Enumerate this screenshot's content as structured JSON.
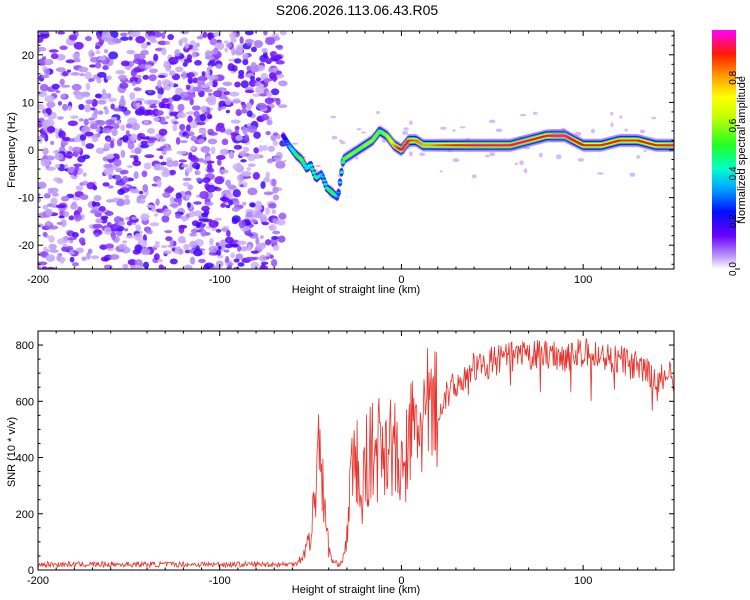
{
  "title": "S206.2026.113.06.43.R05",
  "colors": {
    "trace": "#e8312a",
    "axis": "#000000"
  },
  "chart_data": [
    {
      "type": "heatmap",
      "name": "spectrogram",
      "xlabel": "Height of straight line (km)",
      "ylabel": "Frequency (Hz)",
      "xlim": [
        -200,
        150
      ],
      "ylim": [
        -25,
        25
      ],
      "xticks": [
        -200,
        -100,
        0,
        100
      ],
      "yticks": [
        -20,
        -10,
        0,
        10,
        20
      ],
      "colorbar": {
        "label": "Normalized spectral amplitude",
        "ticks": [
          0.0,
          0.2,
          0.4,
          0.6,
          0.8
        ],
        "tick_labels": [
          "0.0",
          "0.2",
          "0.4",
          "0.6",
          "0.8"
        ],
        "range": [
          0,
          1
        ]
      },
      "noise_region_km": [
        -200,
        -65
      ],
      "ridge_km": [
        -65,
        -62,
        -58,
        -55,
        -52,
        -50,
        -47,
        -44,
        -41,
        -38,
        -35,
        -32,
        -28,
        -24,
        -20,
        -16,
        -12,
        -8,
        -4,
        0,
        4,
        8,
        12,
        16,
        20,
        30,
        40,
        50,
        60,
        70,
        80,
        85,
        90,
        95,
        100,
        110,
        120,
        130,
        140,
        150
      ],
      "ridge_hz": [
        3,
        1,
        -1,
        -2,
        -4,
        -3,
        -6,
        -5,
        -8,
        -9,
        -10,
        -2,
        -1,
        0,
        1,
        2,
        4,
        3,
        1,
        0,
        2,
        2,
        1,
        1,
        1,
        1,
        1,
        1,
        1,
        2,
        3,
        3,
        3,
        2,
        1,
        1,
        2,
        2,
        1,
        1
      ],
      "ridge_amplitude": [
        0.2,
        0.35,
        0.5,
        0.55,
        0.4,
        0.45,
        0.5,
        0.35,
        0.45,
        0.55,
        0.3,
        0.55,
        0.6,
        0.55,
        0.6,
        0.6,
        0.55,
        0.6,
        0.8,
        0.95,
        0.9,
        0.85,
        0.8,
        0.8,
        0.85,
        0.9,
        0.95,
        0.95,
        0.95,
        0.95,
        0.9,
        1.0,
        1.0,
        0.9,
        0.9,
        0.9,
        0.9,
        0.9,
        0.9,
        0.95
      ]
    },
    {
      "type": "line",
      "name": "snr",
      "xlabel": "Height of straight line (km)",
      "ylabel": "SNR (10 * v/v)",
      "xlim": [
        -200,
        150
      ],
      "ylim": [
        0,
        850
      ],
      "xticks": [
        -200,
        -100,
        0,
        100
      ],
      "yticks": [
        0,
        200,
        400,
        600,
        800
      ],
      "series": [
        {
          "name": "SNR",
          "x": [
            -200,
            -150,
            -100,
            -60,
            -55,
            -50,
            -47,
            -45,
            -43,
            -40,
            -38,
            -35,
            -32,
            -30,
            -28,
            -25,
            -22,
            -20,
            -15,
            -10,
            -5,
            0,
            5,
            10,
            20,
            30,
            40,
            50,
            60,
            70,
            80,
            90,
            100,
            110,
            120,
            130,
            140,
            150
          ],
          "values": [
            20,
            20,
            20,
            20,
            40,
            120,
            300,
            550,
            250,
            80,
            30,
            20,
            40,
            120,
            300,
            420,
            200,
            380,
            420,
            460,
            450,
            320,
            480,
            520,
            580,
            660,
            720,
            740,
            760,
            760,
            770,
            760,
            770,
            760,
            750,
            720,
            680,
            690
          ]
        }
      ]
    }
  ]
}
